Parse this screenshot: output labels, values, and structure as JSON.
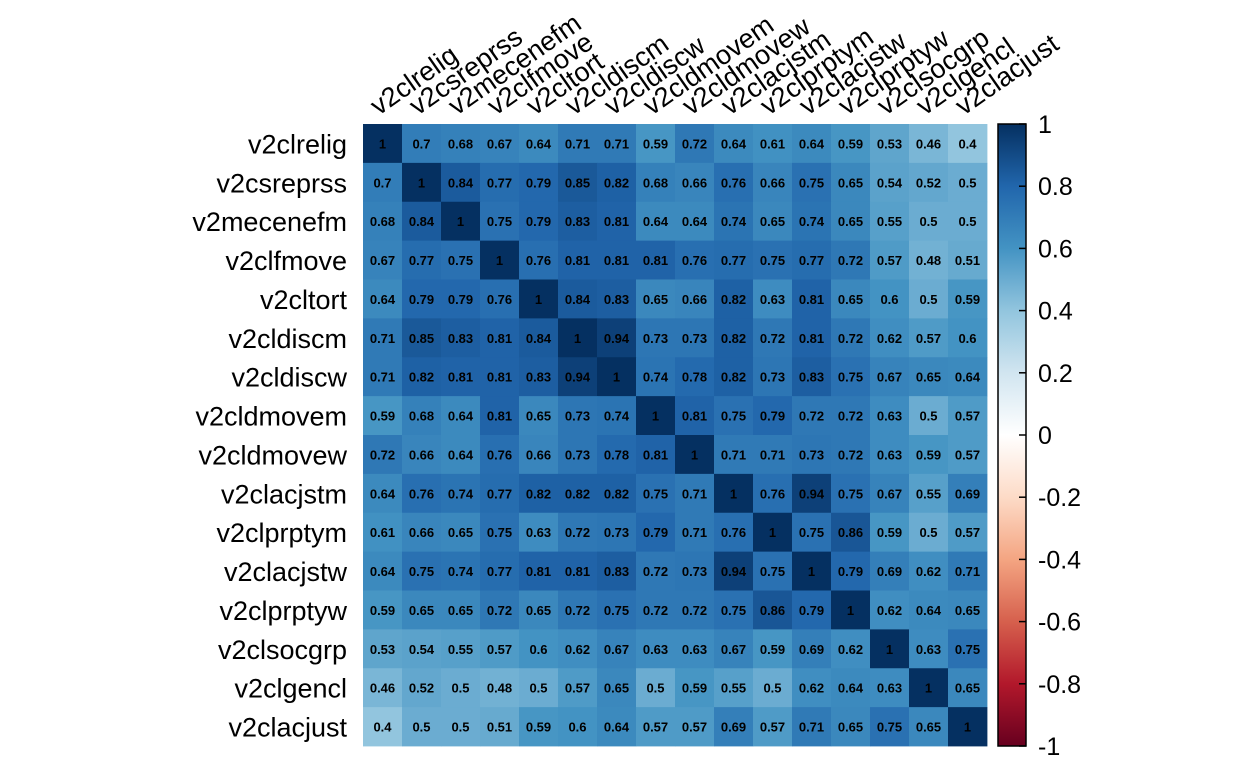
{
  "chart_data": {
    "type": "heatmap",
    "title": "",
    "xlabel": "",
    "ylabel": "",
    "variables": [
      "v2clrelig",
      "v2csreprss",
      "v2mecenefm",
      "v2clfmove",
      "v2cltort",
      "v2cldiscm",
      "v2cldiscw",
      "v2cldmovem",
      "v2cldmovew",
      "v2clacjstm",
      "v2clprptym",
      "v2clacjstw",
      "v2clprptyw",
      "v2clsocgrp",
      "v2clgencl",
      "v2clacjust"
    ],
    "matrix": [
      [
        1,
        0.7,
        0.68,
        0.67,
        0.64,
        0.71,
        0.71,
        0.59,
        0.72,
        0.64,
        0.61,
        0.64,
        0.59,
        0.53,
        0.46,
        0.4
      ],
      [
        0.7,
        1,
        0.84,
        0.77,
        0.79,
        0.85,
        0.82,
        0.68,
        0.66,
        0.76,
        0.66,
        0.75,
        0.65,
        0.54,
        0.52,
        0.5
      ],
      [
        0.68,
        0.84,
        1,
        0.75,
        0.79,
        0.83,
        0.81,
        0.64,
        0.64,
        0.74,
        0.65,
        0.74,
        0.65,
        0.55,
        0.5,
        0.5
      ],
      [
        0.67,
        0.77,
        0.75,
        1,
        0.76,
        0.81,
        0.81,
        0.81,
        0.76,
        0.77,
        0.75,
        0.77,
        0.72,
        0.57,
        0.48,
        0.51
      ],
      [
        0.64,
        0.79,
        0.79,
        0.76,
        1,
        0.84,
        0.83,
        0.65,
        0.66,
        0.82,
        0.63,
        0.81,
        0.65,
        0.6,
        0.5,
        0.59
      ],
      [
        0.71,
        0.85,
        0.83,
        0.81,
        0.84,
        1,
        0.94,
        0.73,
        0.73,
        0.82,
        0.72,
        0.81,
        0.72,
        0.62,
        0.57,
        0.6
      ],
      [
        0.71,
        0.82,
        0.81,
        0.81,
        0.83,
        0.94,
        1,
        0.74,
        0.78,
        0.82,
        0.73,
        0.83,
        0.75,
        0.67,
        0.65,
        0.64
      ],
      [
        0.59,
        0.68,
        0.64,
        0.81,
        0.65,
        0.73,
        0.74,
        1,
        0.81,
        0.75,
        0.79,
        0.72,
        0.72,
        0.63,
        0.5,
        0.57
      ],
      [
        0.72,
        0.66,
        0.64,
        0.76,
        0.66,
        0.73,
        0.78,
        0.81,
        1,
        0.71,
        0.71,
        0.73,
        0.72,
        0.63,
        0.59,
        0.57
      ],
      [
        0.64,
        0.76,
        0.74,
        0.77,
        0.82,
        0.82,
        0.82,
        0.75,
        0.71,
        1,
        0.76,
        0.94,
        0.75,
        0.67,
        0.55,
        0.69
      ],
      [
        0.61,
        0.66,
        0.65,
        0.75,
        0.63,
        0.72,
        0.73,
        0.79,
        0.71,
        0.76,
        1,
        0.75,
        0.86,
        0.59,
        0.5,
        0.57
      ],
      [
        0.64,
        0.75,
        0.74,
        0.77,
        0.81,
        0.81,
        0.83,
        0.72,
        0.73,
        0.94,
        0.75,
        1,
        0.79,
        0.69,
        0.62,
        0.71
      ],
      [
        0.59,
        0.65,
        0.65,
        0.72,
        0.65,
        0.72,
        0.75,
        0.72,
        0.72,
        0.75,
        0.86,
        0.79,
        1,
        0.62,
        0.64,
        0.65
      ],
      [
        0.53,
        0.54,
        0.55,
        0.57,
        0.6,
        0.62,
        0.67,
        0.63,
        0.63,
        0.67,
        0.59,
        0.69,
        0.62,
        1,
        0.63,
        0.75
      ],
      [
        0.46,
        0.52,
        0.5,
        0.48,
        0.5,
        0.57,
        0.65,
        0.5,
        0.59,
        0.55,
        0.5,
        0.62,
        0.64,
        0.63,
        1,
        0.65
      ],
      [
        0.4,
        0.5,
        0.5,
        0.51,
        0.59,
        0.6,
        0.64,
        0.57,
        0.57,
        0.69,
        0.57,
        0.71,
        0.65,
        0.75,
        0.65,
        1
      ]
    ],
    "colorbar": {
      "range": [
        -1,
        1
      ],
      "ticks": [
        "1",
        "0.8",
        "0.6",
        "0.4",
        "0.2",
        "0",
        "-0.2",
        "-0.4",
        "-0.6",
        "-0.8",
        "-1"
      ],
      "colors": [
        "#67001f",
        "#b2182b",
        "#d6604d",
        "#f4a582",
        "#fddbc7",
        "#ffffff",
        "#d1e5f0",
        "#92c5de",
        "#4393c3",
        "#2166ac",
        "#053061"
      ]
    },
    "legend_position": "right"
  }
}
